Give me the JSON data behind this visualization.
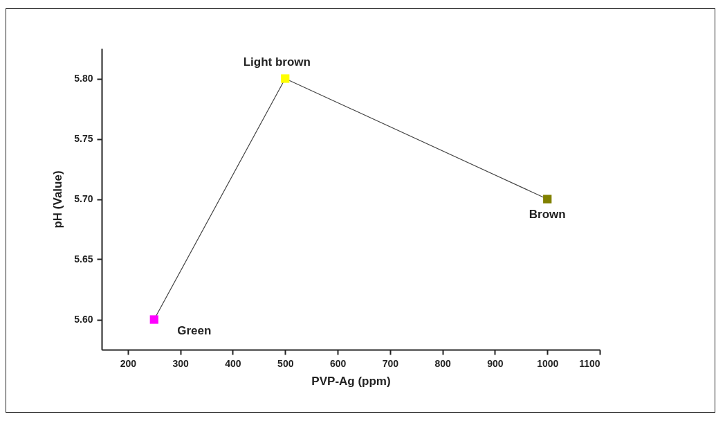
{
  "chart_data": {
    "type": "line",
    "xlabel": "PVP-Ag (ppm)",
    "ylabel": "pH (Value)",
    "x": [
      250,
      500,
      1000
    ],
    "series": [
      {
        "color": "#444444",
        "colors": [
          "#ff00ff",
          "#ffff00",
          "#808000"
        ],
        "values": [
          5.6,
          5.8,
          5.7
        ]
      }
    ],
    "xlim": [
      150,
      1100
    ],
    "xticks": [
      200,
      300,
      400,
      500,
      600,
      700,
      800,
      900,
      1000,
      1100
    ],
    "ylim": [
      5.575,
      5.825
    ],
    "yticks": [
      {
        "value": 5.6,
        "label": "5.60"
      },
      {
        "value": 5.65,
        "label": "5.65"
      },
      {
        "value": 5.7,
        "label": "5.70"
      },
      {
        "value": 5.75,
        "label": "5.75"
      },
      {
        "value": 5.8,
        "label": "5.80"
      }
    ],
    "marker": "square",
    "line_style": "solid",
    "grid": false,
    "legend": false,
    "annotations": [
      {
        "text": "Green",
        "x": 250,
        "y": 5.6
      },
      {
        "text": "Light brown",
        "x": 500,
        "y": 5.8
      },
      {
        "text": "Brown",
        "x": 1000,
        "y": 5.7
      }
    ]
  }
}
